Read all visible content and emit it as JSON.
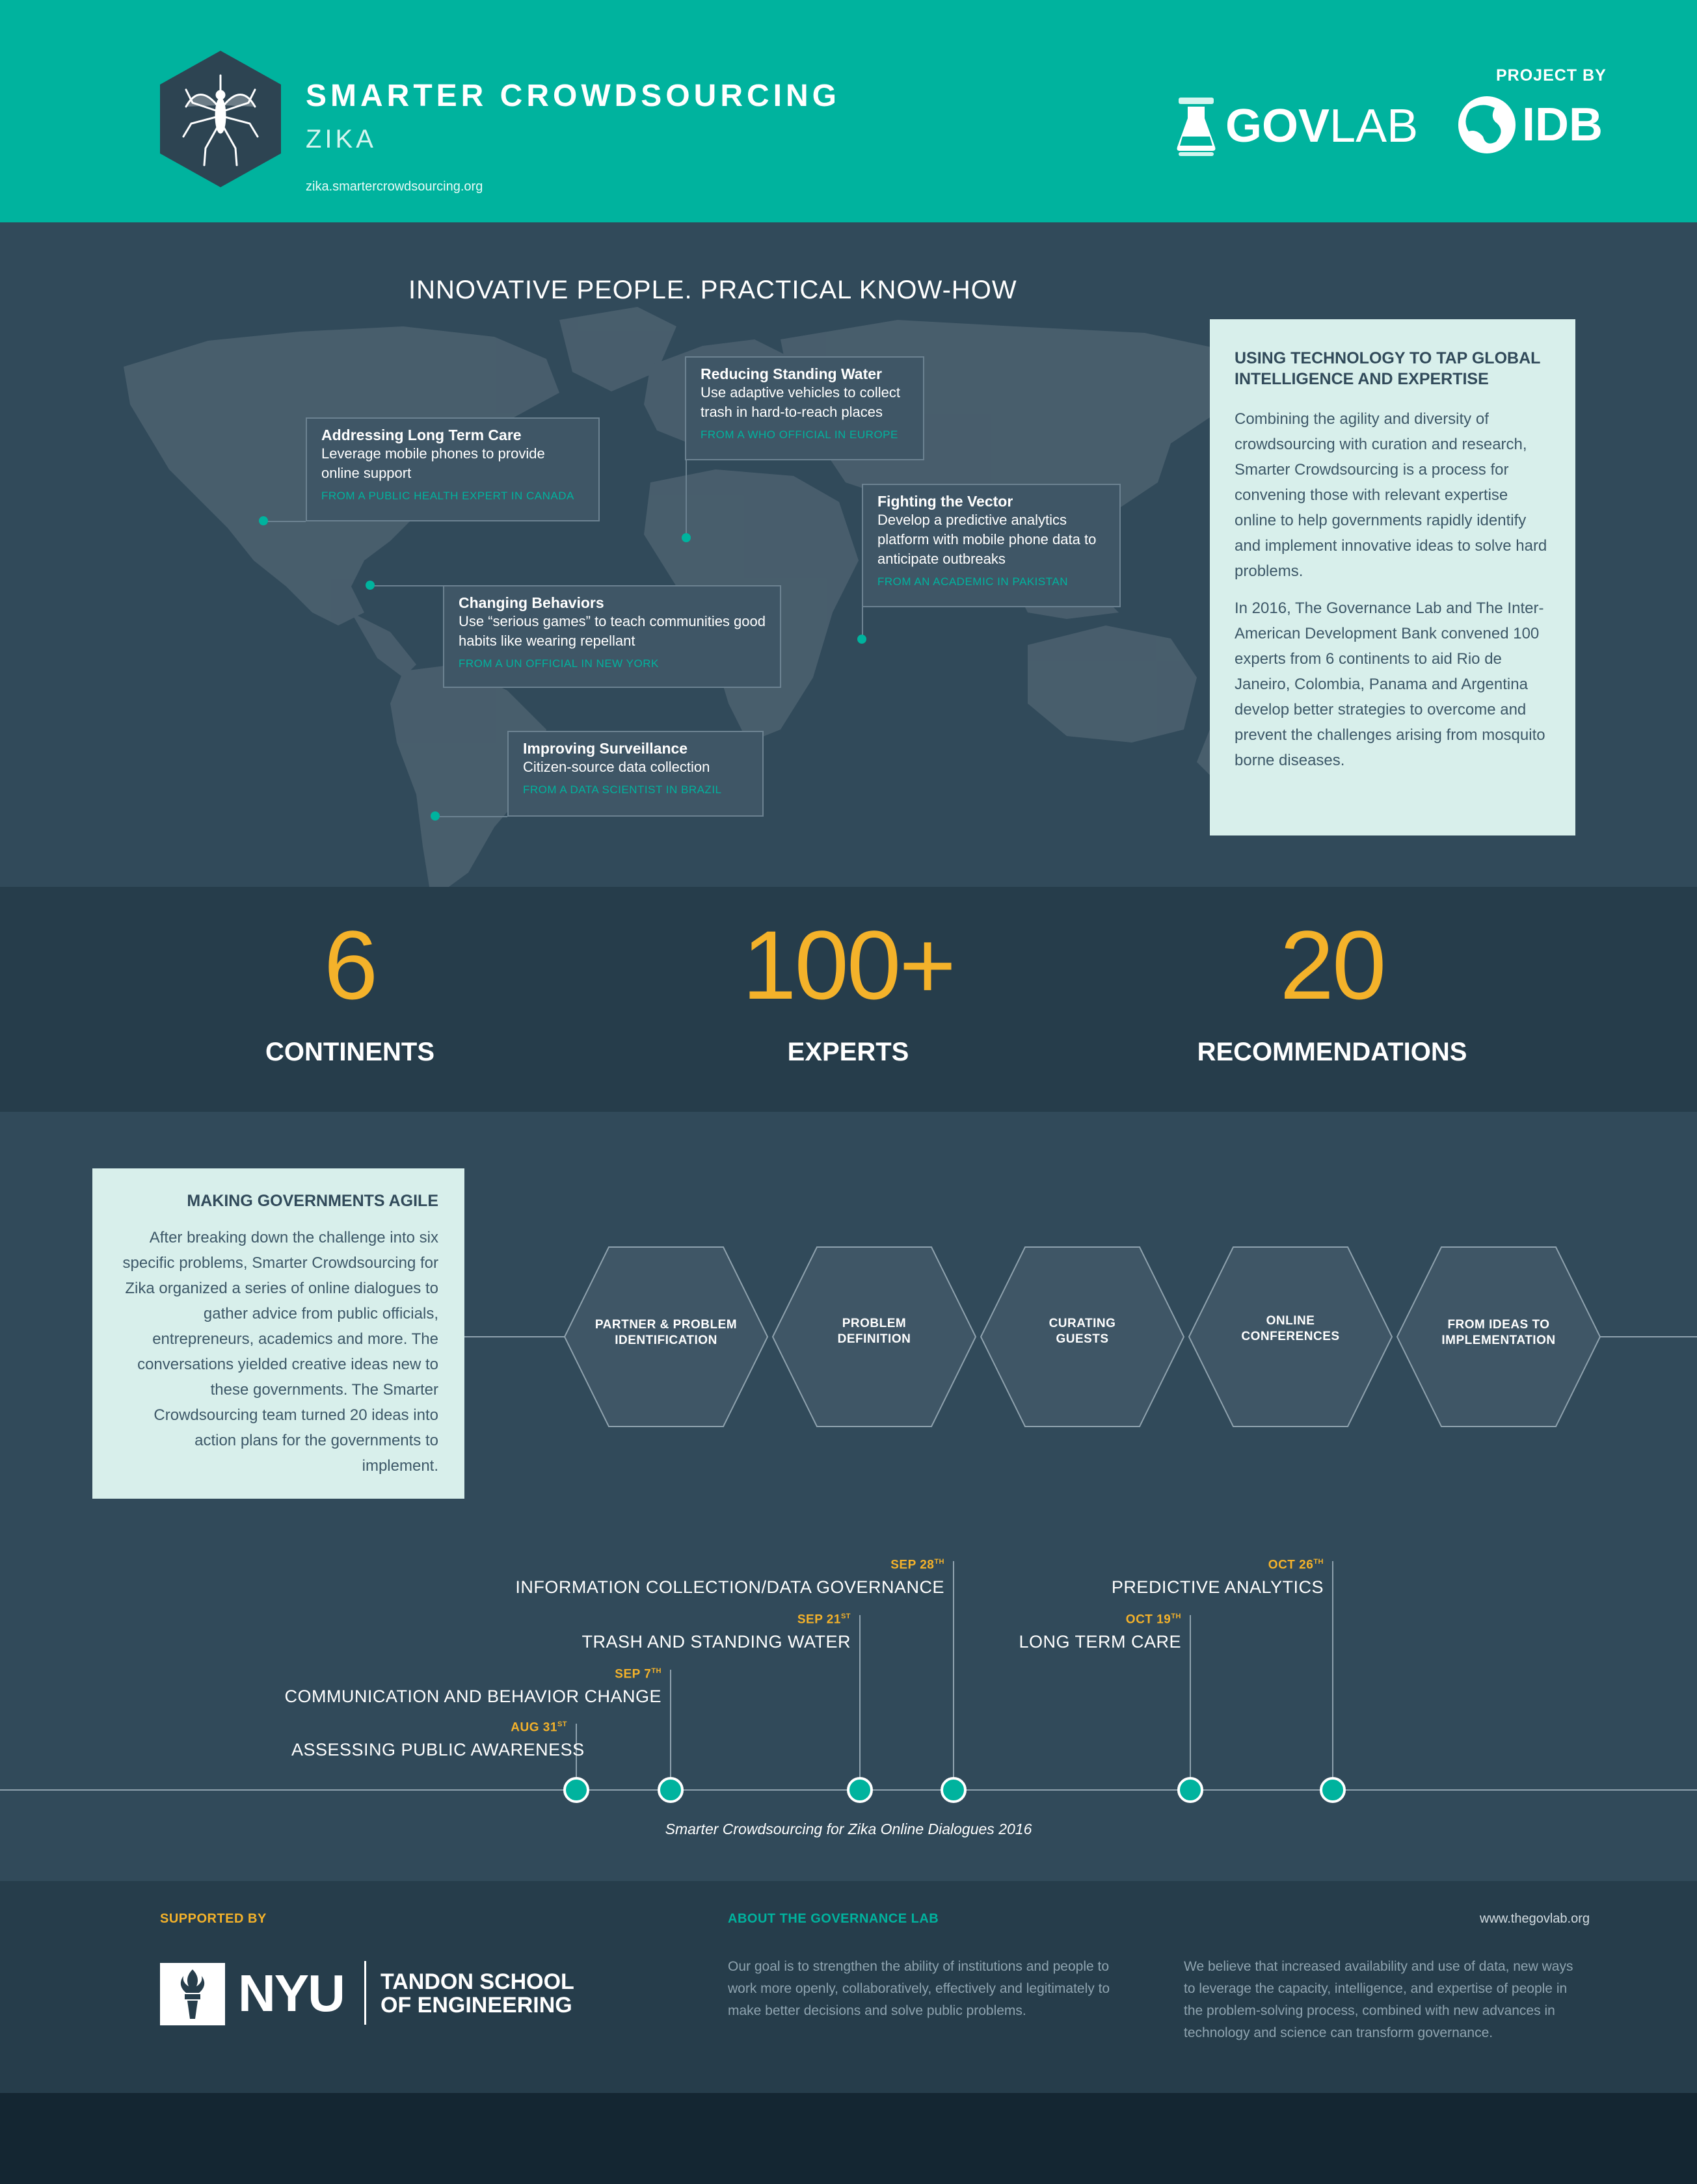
{
  "header": {
    "title": "SMARTER CROWDSOURCING",
    "subtitle": "ZIKA",
    "url": "zika.smartercrowdsourcing.org",
    "project_by": "PROJECT BY",
    "govlab_bold": "GOV",
    "govlab_light": "LAB",
    "idb": "IDB"
  },
  "map_section": {
    "title": "INNOVATIVE PEOPLE. PRACTICAL KNOW-HOW",
    "cards": [
      {
        "title": "Addressing Long Term Care",
        "desc": "Leverage mobile phones to provide online support",
        "source": "FROM A PUBLIC HEALTH EXPERT IN CANADA"
      },
      {
        "title": "Reducing Standing Water",
        "desc": "Use adaptive vehicles to collect trash in hard-to-reach places",
        "source": "FROM A WHO OFFICIAL IN EUROPE"
      },
      {
        "title": "Fighting the Vector",
        "desc": "Develop a predictive analytics platform with mobile phone data to anticipate outbreaks",
        "source": "FROM AN ACADEMIC IN PAKISTAN"
      },
      {
        "title": "Changing Behaviors",
        "desc": "Use “serious games” to teach communities good habits like wearing repellant",
        "source": "FROM A UN OFFICIAL IN NEW YORK"
      },
      {
        "title": "Improving Surveillance",
        "desc": "Citizen-source data collection",
        "source": "FROM A DATA SCIENTIST IN BRAZIL"
      }
    ],
    "info": {
      "title": "USING TECHNOLOGY TO TAP GLOBAL INTELLIGENCE AND EXPERTISE",
      "p1": "Combining the agility and diversity of crowdsourcing with curation and research, Smarter Crowdsourcing is a process for convening those with relevant expertise online to help governments rapidly identify and implement innovative ideas to solve hard problems.",
      "p2": "In 2016, The Governance Lab and The Inter-American Development Bank convened 100 experts from 6 continents to aid Rio de Janeiro, Colombia, Panama and Argentina develop better strategies to overcome and prevent the challenges arising from mosquito borne diseases."
    }
  },
  "stats": [
    {
      "value": "6",
      "label": "CONTINENTS"
    },
    {
      "value": "100+",
      "label": "EXPERTS"
    },
    {
      "value": "20",
      "label": "RECOMMENDATIONS"
    }
  ],
  "agile": {
    "title": "MAKING GOVERNMENTS AGILE",
    "text": "After breaking down the challenge into six specific problems, Smarter Crowdsourcing for Zika organized a series of online dialogues to gather advice from public officials, entrepreneurs, academics and more. The conversations yielded creative ideas new to these governments. The Smarter Crowdsourcing team turned 20 ideas into action plans for the governments to implement.",
    "steps": [
      {
        "line1": "PARTNER & PROBLEM",
        "line2": "IDENTIFICATION"
      },
      {
        "line1": "PROBLEM",
        "line2": "DEFINITION"
      },
      {
        "line1": "CURATING",
        "line2": "GUESTS"
      },
      {
        "line1": "ONLINE",
        "line2": "CONFERENCES"
      },
      {
        "line1": "FROM IDEAS TO",
        "line2": "IMPLEMENTATION"
      }
    ]
  },
  "timeline": {
    "events": [
      {
        "title": "ASSESSING PUBLIC AWARENESS",
        "date": "AUG 31",
        "suffix": "ST"
      },
      {
        "title": "COMMUNICATION AND BEHAVIOR CHANGE",
        "date": "SEP 7",
        "suffix": "TH"
      },
      {
        "title": "TRASH AND STANDING WATER",
        "date": "SEP 21",
        "suffix": "ST"
      },
      {
        "title": "INFORMATION COLLECTION/DATA GOVERNANCE",
        "date": "SEP 28",
        "suffix": "TH"
      },
      {
        "title": "LONG TERM CARE",
        "date": "OCT 19",
        "suffix": "TH"
      },
      {
        "title": "PREDICTIVE ANALYTICS",
        "date": "OCT 26",
        "suffix": "TH"
      }
    ],
    "caption": "Smarter Crowdsourcing for Zika Online Dialogues 2016"
  },
  "footer": {
    "supported_by": "SUPPORTED BY",
    "nyu": "NYU",
    "tandon_line1": "TANDON SCHOOL",
    "tandon_line2": "OF ENGINEERING",
    "about_title": "ABOUT THE GOVERNANCE LAB",
    "about_text": "Our goal is to strengthen the ability of institutions and people to work more openly, collaboratively, effectively and legitimately to make better decisions and solve public problems.",
    "belief_text": "We believe that increased availability and use of data, new ways to leverage the capacity, intelligence, and expertise of people in the problem-solving process, combined with new advances in technology and science can transform governance.",
    "website": "www.thegovlab.org"
  },
  "colors": {
    "teal": "#00b39e",
    "navy": "#314a5a",
    "dark_navy": "#263d4b",
    "orange": "#f4b22a",
    "mint": "#d8efeb"
  }
}
